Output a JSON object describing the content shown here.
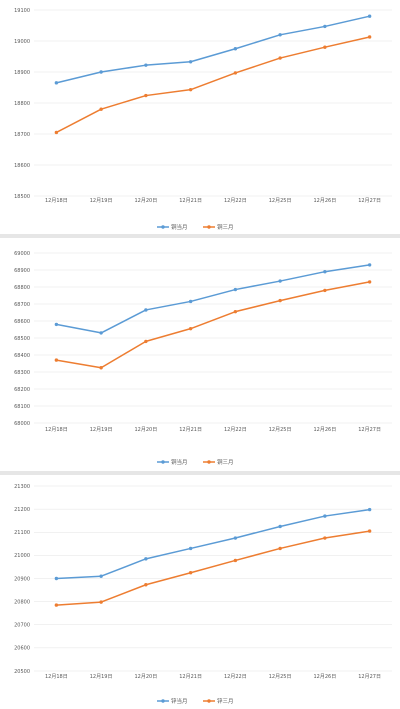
{
  "chart_data": [
    {
      "type": "line",
      "categories": [
        "12月18日",
        "12月19日",
        "12月20日",
        "12月21日",
        "12月22日",
        "12月25日",
        "12月26日",
        "12月27日"
      ],
      "y_ticks": [
        "18500",
        "18600",
        "18700",
        "18800",
        "18900",
        "19000",
        "19100"
      ],
      "ylim": [
        18500,
        19100
      ],
      "grid": true,
      "legend_position": "bottom",
      "series": [
        {
          "name": "铜当月",
          "color": "#5b9bd5",
          "values": [
            18865,
            18900,
            18922,
            18933,
            18975,
            19020,
            19047,
            19080
          ]
        },
        {
          "name": "铜三月",
          "color": "#ed7d31",
          "values": [
            18705,
            18780,
            18824,
            18843,
            18897,
            18945,
            18980,
            19013
          ]
        }
      ]
    },
    {
      "type": "line",
      "categories": [
        "12月18日",
        "12月19日",
        "12月20日",
        "12月21日",
        "12月22日",
        "12月25日",
        "12月26日",
        "12月27日"
      ],
      "y_ticks": [
        "68000",
        "68100",
        "68200",
        "68300",
        "68400",
        "68500",
        "68600",
        "68700",
        "68800",
        "68900",
        "69000"
      ],
      "ylim": [
        68000,
        69000
      ],
      "grid": true,
      "legend_position": "bottom",
      "series": [
        {
          "name": "铜当月",
          "color": "#5b9bd5",
          "values": [
            68580,
            68530,
            68665,
            68715,
            68785,
            68835,
            68890,
            68930
          ]
        },
        {
          "name": "铜三月",
          "color": "#ed7d31",
          "values": [
            68370,
            68325,
            68480,
            68555,
            68655,
            68720,
            68780,
            68830
          ]
        }
      ]
    },
    {
      "type": "line",
      "categories": [
        "12月18日",
        "12月19日",
        "12月20日",
        "12月21日",
        "12月22日",
        "12月25日",
        "12月26日",
        "12月27日"
      ],
      "y_ticks": [
        "20500",
        "20600",
        "20700",
        "20800",
        "20900",
        "21000",
        "21100",
        "21200",
        "21300"
      ],
      "ylim": [
        20500,
        21300
      ],
      "grid": true,
      "legend_position": "bottom",
      "series": [
        {
          "name": "锌当月",
          "color": "#5b9bd5",
          "values": [
            20900,
            20910,
            20985,
            21030,
            21075,
            21125,
            21170,
            21198
          ]
        },
        {
          "name": "锌三月",
          "color": "#ed7d31",
          "values": [
            20785,
            20798,
            20873,
            20925,
            20978,
            21030,
            21075,
            21105
          ]
        }
      ]
    }
  ]
}
